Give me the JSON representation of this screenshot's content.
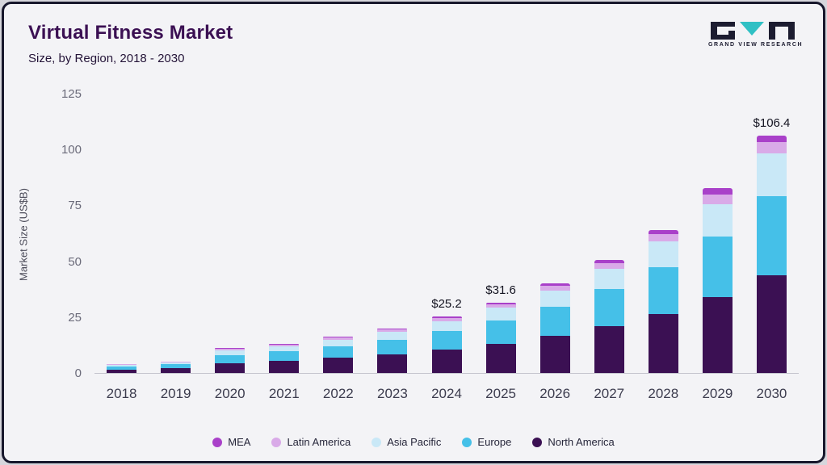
{
  "header": {
    "title": "Virtual Fitness Market",
    "subtitle": "Size, by Region, 2018 - 2030",
    "logo_text": "GRAND VIEW RESEARCH"
  },
  "colors": {
    "accent_dark": "#3b1053",
    "logo_teal": "#2fc0c4",
    "logo_dark": "#1c1c30"
  },
  "chart_data": {
    "type": "bar",
    "stacked": true,
    "title": "Virtual Fitness Market Size, by Region, 2018 - 2030",
    "xlabel": "",
    "ylabel": "Market Size (US$B)",
    "ylim": [
      0,
      125
    ],
    "yticks": [
      0,
      25,
      50,
      75,
      100,
      125
    ],
    "grid": false,
    "legend_position": "bottom",
    "categories": [
      "2018",
      "2019",
      "2020",
      "2021",
      "2022",
      "2023",
      "2024",
      "2025",
      "2026",
      "2027",
      "2028",
      "2029",
      "2030"
    ],
    "series": [
      {
        "name": "North America",
        "color": "#3b1053",
        "values": [
          1.6,
          2.1,
          4.5,
          5.3,
          6.7,
          8.2,
          10.4,
          13.0,
          16.5,
          20.8,
          26.4,
          33.8,
          43.9
        ]
      },
      {
        "name": "Europe",
        "color": "#45c0e8",
        "values": [
          1.3,
          1.7,
          3.6,
          4.3,
          5.4,
          6.6,
          8.3,
          10.4,
          13.2,
          16.7,
          21.1,
          27.1,
          35.1
        ]
      },
      {
        "name": "Asia Pacific",
        "color": "#c9e8f7",
        "values": [
          0.7,
          0.9,
          2.0,
          2.4,
          2.9,
          3.6,
          4.5,
          5.7,
          7.2,
          9.1,
          11.5,
          14.8,
          19.2
        ]
      },
      {
        "name": "Latin America",
        "color": "#d9aae8",
        "values": [
          0.25,
          0.3,
          0.6,
          0.7,
          0.8,
          1.0,
          1.3,
          1.6,
          2.0,
          2.5,
          3.2,
          4.1,
          5.3
        ]
      },
      {
        "name": "MEA",
        "color": "#a940c9",
        "values": [
          0.15,
          0.2,
          0.4,
          0.4,
          0.5,
          0.6,
          0.7,
          0.9,
          1.1,
          1.4,
          1.8,
          2.9,
          2.9
        ]
      }
    ],
    "totals_labeled": [
      {
        "category": "2024",
        "label": "$25.2"
      },
      {
        "category": "2025",
        "label": "$31.6"
      },
      {
        "category": "2030",
        "label": "$106.4"
      }
    ],
    "legend": [
      "MEA",
      "Latin America",
      "Asia Pacific",
      "Europe",
      "North America"
    ]
  }
}
